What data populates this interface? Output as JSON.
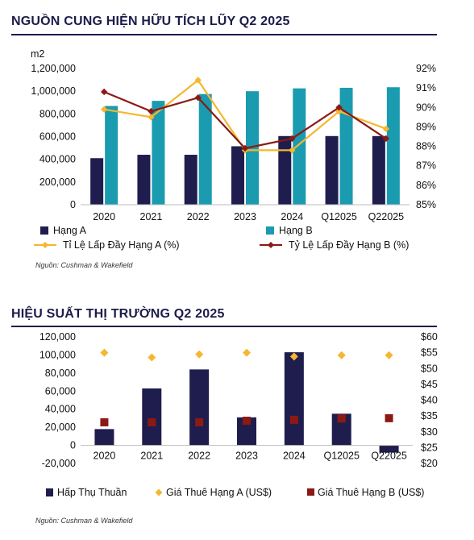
{
  "section1": {
    "title": "NGUỒN CUNG HIỆN HỮU TÍCH LŨY Q2 2025",
    "source": "Nguồn: Cushman & Wakefield"
  },
  "section2": {
    "title": "HIỆU SUẤT THỊ TRƯỜNG Q2 2025",
    "source": "Nguồn: Cushman & Wakefield"
  },
  "colors": {
    "navy": "#1f1d4e",
    "teal": "#1a9bb0",
    "gold": "#f4b72f",
    "darkred": "#8b1a14",
    "title": "#1c1c4a"
  },
  "chart_data": [
    {
      "type": "bar",
      "unit_label": "m2",
      "categories": [
        "2020",
        "2021",
        "2022",
        "2023",
        "2024",
        "Q12025",
        "Q22025"
      ],
      "ylim": [
        0,
        1200000
      ],
      "yticks": [
        "0",
        "200,000",
        "400,000",
        "600,000",
        "800,000",
        "1,000,000",
        "1,200,000"
      ],
      "y2lim": [
        85,
        92
      ],
      "y2ticks": [
        "85%",
        "86%",
        "87%",
        "88%",
        "89%",
        "90%",
        "91%",
        "92%"
      ],
      "series": [
        {
          "name": "Hạng A",
          "kind": "bar",
          "axis": "left",
          "color": "#1f1d4e",
          "values": [
            410000,
            440000,
            440000,
            515000,
            605000,
            605000,
            605000
          ]
        },
        {
          "name": "Hạng B",
          "kind": "bar",
          "axis": "left",
          "color": "#1a9bb0",
          "values": [
            870000,
            915000,
            975000,
            1000000,
            1025000,
            1030000,
            1035000
          ]
        },
        {
          "name": "Tỉ Lệ Lấp Đầy Hạng A (%)",
          "kind": "line",
          "axis": "right",
          "color": "#f4b72f",
          "values": [
            89.9,
            89.5,
            91.4,
            87.8,
            87.8,
            89.8,
            88.9
          ]
        },
        {
          "name": "Tỷ Lệ Lấp Đầy Hạng B (%)",
          "kind": "line",
          "axis": "right",
          "color": "#8b1a14",
          "values": [
            90.8,
            89.8,
            90.5,
            87.9,
            88.4,
            90.0,
            88.4
          ]
        }
      ],
      "legend": "bottom"
    },
    {
      "type": "bar",
      "categories": [
        "2020",
        "2021",
        "2022",
        "2023",
        "2024",
        "Q12025",
        "Q22025"
      ],
      "ylim": [
        -20000,
        120000
      ],
      "yticks": [
        "-20,000",
        "0",
        "20,000",
        "40,000",
        "60,000",
        "80,000",
        "100,000",
        "120,000"
      ],
      "y2lim": [
        20,
        60
      ],
      "y2ticks": [
        "$20",
        "$25",
        "$30",
        "$35",
        "$40",
        "$45",
        "$50",
        "$55",
        "$60"
      ],
      "series": [
        {
          "name": "Hấp Thụ Thuần",
          "kind": "bar",
          "axis": "left",
          "color": "#1f1d4e",
          "values": [
            18000,
            63000,
            84000,
            31000,
            103000,
            35000,
            -8000
          ]
        },
        {
          "name": "Giá Thuê Hạng A (US$)",
          "kind": "scatter",
          "marker": "diamond",
          "axis": "right",
          "color": "#f4b72f",
          "values": [
            55.0,
            53.5,
            54.5,
            55.0,
            53.8,
            54.2,
            54.2
          ]
        },
        {
          "name": "Giá Thuê Hạng B (US$)",
          "kind": "scatter",
          "marker": "square",
          "axis": "right",
          "color": "#8b1a14",
          "values": [
            33.0,
            33.0,
            33.0,
            33.5,
            33.8,
            34.2,
            34.3
          ]
        }
      ],
      "legend": "bottom"
    }
  ]
}
